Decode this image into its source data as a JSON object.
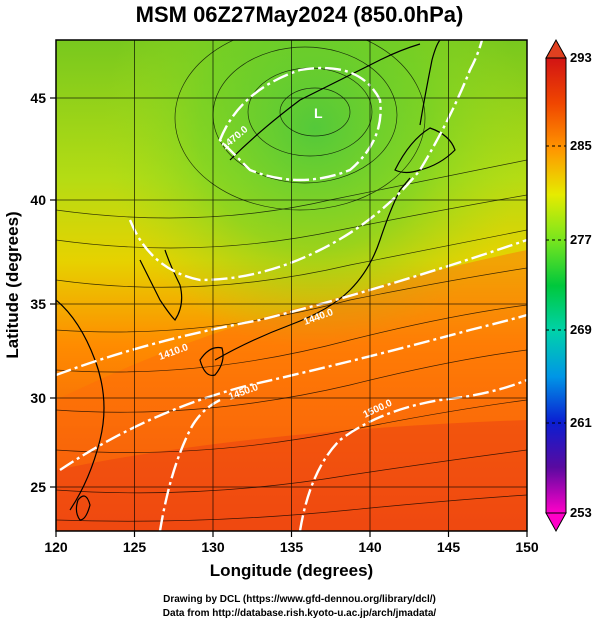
{
  "title": "MSM 06Z27May2024 (850.0hPa)",
  "x_axis": {
    "label": "Longitude (degrees)",
    "ticks": [
      "120",
      "125",
      "130",
      "135",
      "140",
      "145",
      "150"
    ],
    "range": [
      120,
      150
    ]
  },
  "y_axis": {
    "label": "Latitude  (degrees)",
    "ticks": [
      "25",
      "30",
      "35",
      "40",
      "45"
    ],
    "range": [
      22.4,
      47.6
    ]
  },
  "colorbar": {
    "labels": [
      "293",
      "285",
      "277",
      "269",
      "261",
      "253"
    ],
    "range": [
      253,
      293
    ],
    "colors": [
      "#ff00c8",
      "#5a0aa0",
      "#0a1ed2",
      "#0096e6",
      "#00d2aa",
      "#00c83c",
      "#78e61e",
      "#e6eb00",
      "#ff9600",
      "#f04600",
      "#d21414"
    ]
  },
  "contour_labels": [
    "1470.0",
    "1410.0",
    "1440.0",
    "1450.0",
    "1500.0"
  ],
  "credits": [
    "Drawing by DCL (https://www.gfd-dennou.org/library/dcl/)",
    "Data from http://database.rish.kyoto-u.ac.jp/arch/jmadata/"
  ],
  "features": {
    "low_center_label": "L",
    "colors": {
      "coastline": "#000000",
      "contour": "#ffffff",
      "streamline": "#000000",
      "grid": "#000000"
    }
  }
}
